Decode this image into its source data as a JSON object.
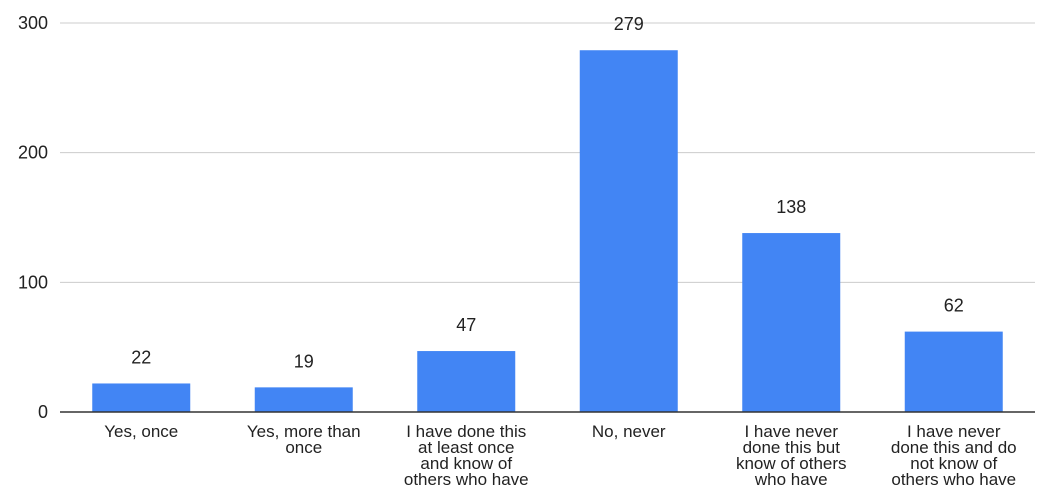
{
  "chart_data": {
    "type": "bar",
    "categories": [
      "Yes, once",
      "Yes, more than once",
      "I have done this at least once and know of others who have",
      "No, never",
      "I have never done this but know of others who have",
      "I have never done this and do not know of others who have"
    ],
    "category_label_lines": [
      [
        "Yes, once"
      ],
      [
        "Yes, more than",
        "once"
      ],
      [
        "I have done this",
        "at least once",
        "and know of",
        "others who have"
      ],
      [
        "No, never"
      ],
      [
        "I have never",
        "done this but",
        "know of others",
        "who have"
      ],
      [
        "I have never",
        "done this and do",
        "not know of",
        "others who have"
      ]
    ],
    "values": [
      22,
      19,
      47,
      279,
      138,
      62
    ],
    "data_labels": [
      "22",
      "19",
      "47",
      "279",
      "138",
      "62"
    ],
    "ylim": [
      0,
      300
    ],
    "yticks": [
      0,
      100,
      200,
      300
    ],
    "ytick_labels": [
      "0",
      "100",
      "200",
      "300"
    ],
    "grid": true,
    "colors": {
      "bar": "#4285F4",
      "grid": "#cccccc",
      "axis": "#333333",
      "text": "#222222"
    }
  }
}
